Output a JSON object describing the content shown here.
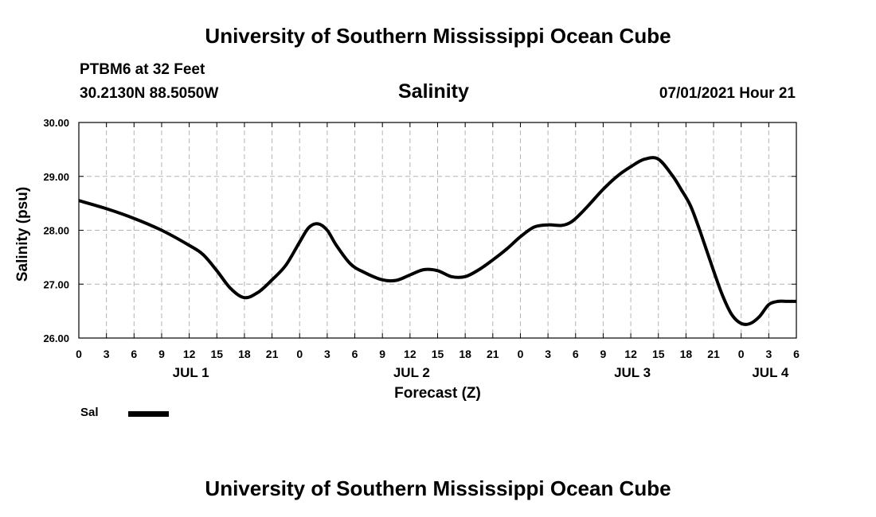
{
  "header": {
    "title_top": "University of Southern Mississippi Ocean Cube",
    "station": "PTBM6 at 32 Feet",
    "coords": "30.2130N  88.5050W",
    "datetime": "07/01/2021 Hour 21",
    "title_bottom": "University of Southern Mississippi Ocean Cube"
  },
  "legend": {
    "label": "Sal",
    "color": "#000000"
  },
  "chart_data": {
    "type": "line",
    "title": "Salinity",
    "xlabel": "Forecast (Z)",
    "ylabel": "Salinity (psu)",
    "xlim": [
      0,
      78
    ],
    "ylim": [
      26.0,
      30.0
    ],
    "grid": true,
    "yticks": [
      26.0,
      27.0,
      28.0,
      29.0,
      30.0
    ],
    "ytick_labels": [
      "26.00",
      "27.00",
      "28.00",
      "29.00",
      "30.00"
    ],
    "xticks": [
      0,
      3,
      6,
      9,
      12,
      15,
      18,
      21,
      24,
      27,
      30,
      33,
      36,
      39,
      42,
      45,
      48,
      51,
      54,
      57,
      60,
      63,
      66,
      69,
      72,
      75,
      78
    ],
    "xtick_labels": [
      "0",
      "3",
      "6",
      "9",
      "12",
      "15",
      "18",
      "21",
      "0",
      "3",
      "6",
      "9",
      "12",
      "15",
      "18",
      "21",
      "0",
      "3",
      "6",
      "9",
      "12",
      "15",
      "18",
      "21",
      "0",
      "3",
      "6"
    ],
    "date_labels": [
      {
        "hour": 12,
        "label": "JUL 1"
      },
      {
        "hour": 36,
        "label": "JUL 2"
      },
      {
        "hour": 60,
        "label": "JUL 3"
      },
      {
        "hour": 75,
        "label": "JUL 4"
      }
    ],
    "series": [
      {
        "name": "Sal",
        "x": [
          0,
          3,
          6,
          9,
          12,
          13.5,
          15,
          16.5,
          18,
          19.5,
          21,
          22.5,
          24,
          25,
          26,
          27,
          28,
          29.5,
          31,
          33,
          34.5,
          36,
          37.5,
          39,
          40.5,
          42,
          43.5,
          45,
          46.5,
          48,
          49.5,
          51,
          52.5,
          53.5,
          54.5,
          55.5,
          57,
          58.5,
          60,
          61.5,
          63,
          64.5,
          65.5,
          66.5,
          67.5,
          69,
          70,
          71,
          72,
          73,
          74,
          75,
          76,
          77,
          78
        ],
        "y": [
          28.55,
          28.4,
          28.22,
          28.0,
          27.72,
          27.55,
          27.25,
          26.92,
          26.75,
          26.85,
          27.08,
          27.35,
          27.78,
          28.05,
          28.12,
          28.0,
          27.72,
          27.38,
          27.22,
          27.08,
          27.07,
          27.17,
          27.27,
          27.25,
          27.14,
          27.14,
          27.27,
          27.45,
          27.65,
          27.88,
          28.06,
          28.1,
          28.09,
          28.15,
          28.3,
          28.48,
          28.76,
          29.0,
          29.18,
          29.32,
          29.32,
          29.02,
          28.75,
          28.45,
          28.0,
          27.25,
          26.78,
          26.43,
          26.27,
          26.27,
          26.4,
          26.62,
          26.68,
          26.68,
          26.68
        ]
      }
    ]
  }
}
